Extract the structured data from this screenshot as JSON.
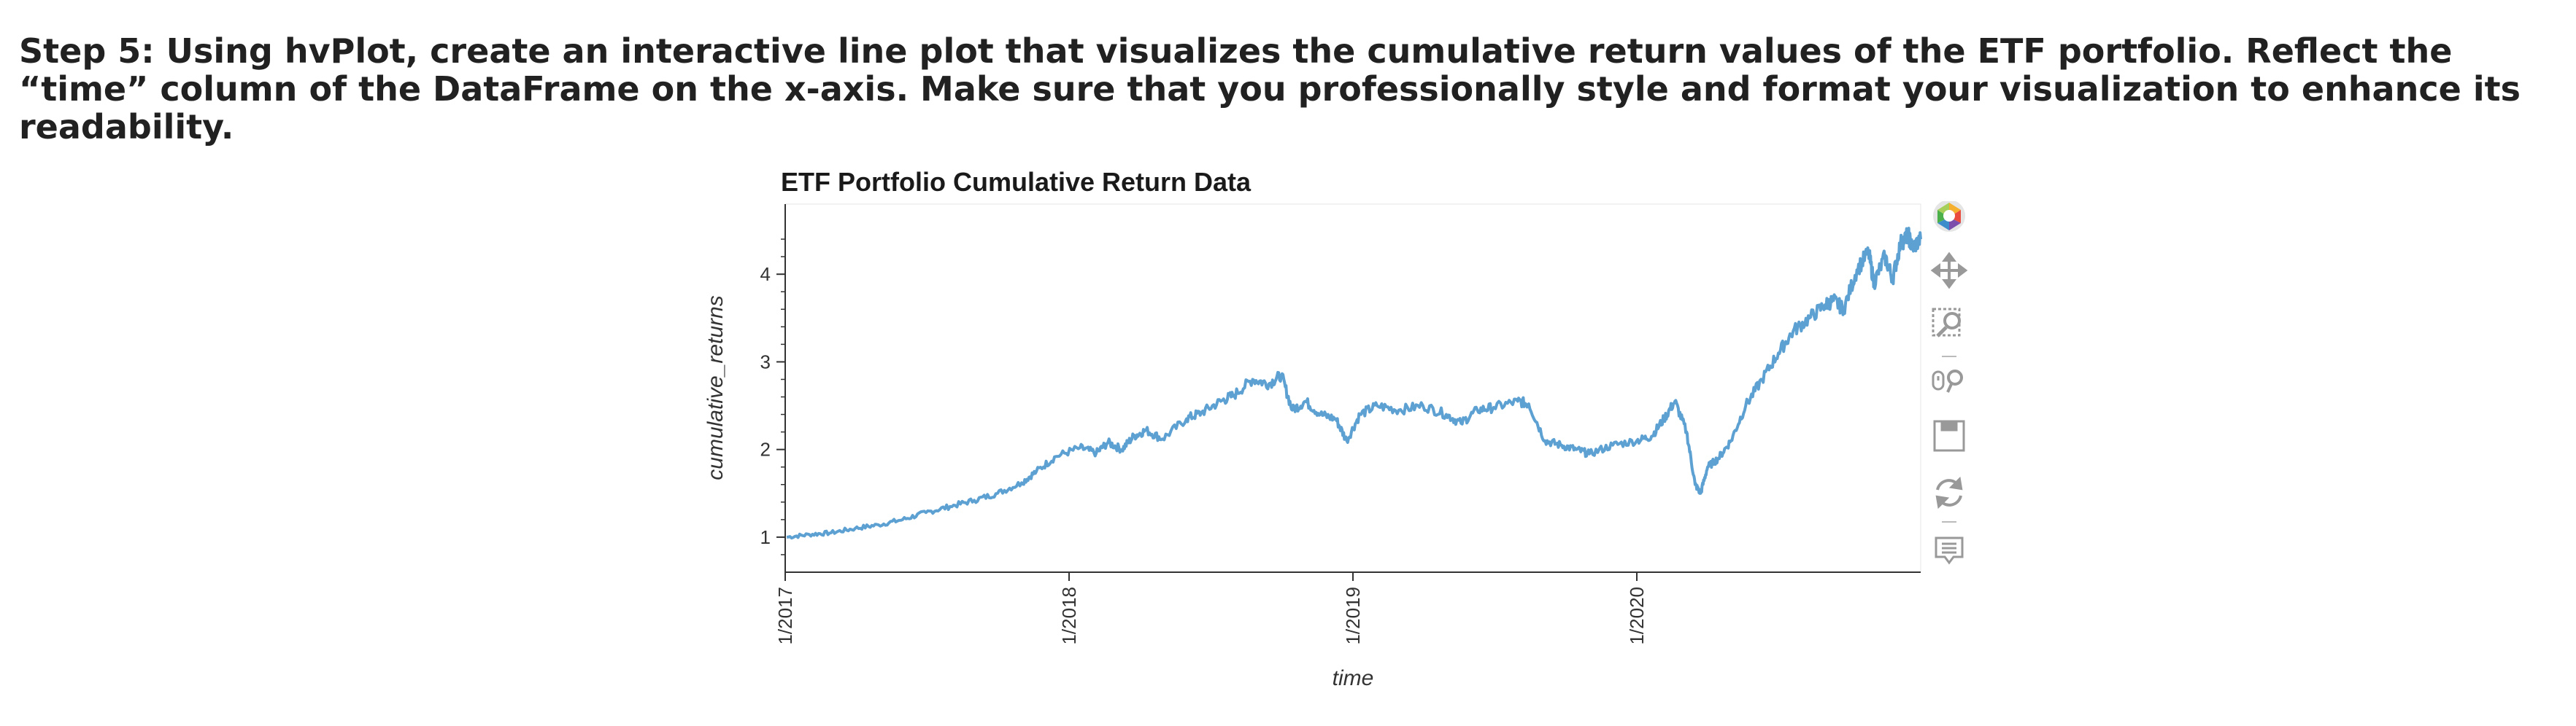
{
  "instruction": {
    "text": "Step 5: Using hvPlot, create an interactive line plot that visualizes the cumulative return values of the ETF portfolio. Reflect the “time” column of the DataFrame on the x-axis. Make sure that you professionally style and format your visualization to enhance its readability."
  },
  "toolbar": {
    "tools": [
      "bokeh-logo-icon",
      "pan-icon",
      "box-zoom-icon",
      "wheel-zoom-icon",
      "save-icon",
      "reset-icon",
      "hover-icon"
    ]
  },
  "colors": {
    "line": "#5da0d2",
    "axis": "#333333",
    "text": "#1a1a1a"
  },
  "chart_data": {
    "type": "line",
    "title": "ETF Portfolio Cumulative Return Data",
    "xlabel": "time",
    "ylabel": "cumulative_returns",
    "x_ticks": [
      "1/2017",
      "1/2018",
      "1/2019",
      "1/2020"
    ],
    "y_ticks": [
      1,
      2,
      3,
      4
    ],
    "xlim": [
      "2017-01-01",
      "2020-12-31"
    ],
    "ylim": [
      0.6,
      4.8
    ],
    "grid": false,
    "legend": "none",
    "series": [
      {
        "x": [
          "2017-01-03",
          "2017-02-01",
          "2017-03-01",
          "2017-04-01",
          "2017-05-01",
          "2017-06-01",
          "2017-07-01",
          "2017-08-01",
          "2017-09-01",
          "2017-10-01",
          "2017-11-01",
          "2017-11-20",
          "2017-12-15",
          "2018-01-15",
          "2018-02-05",
          "2018-02-20",
          "2018-03-10",
          "2018-03-25",
          "2018-04-10",
          "2018-05-01",
          "2018-06-01",
          "2018-06-20",
          "2018-07-15",
          "2018-08-01",
          "2018-08-25",
          "2018-09-15",
          "2018-10-01",
          "2018-10-15",
          "2018-11-01",
          "2018-11-20",
          "2018-12-10",
          "2018-12-24",
          "2019-01-10",
          "2019-02-01",
          "2019-03-01",
          "2019-04-01",
          "2019-05-01",
          "2019-05-20",
          "2019-06-10",
          "2019-07-01",
          "2019-08-01",
          "2019-08-15",
          "2019-09-05",
          "2019-09-25",
          "2019-10-15",
          "2019-11-01",
          "2019-12-01",
          "2020-01-01",
          "2020-01-20",
          "2020-02-05",
          "2020-02-19",
          "2020-03-05",
          "2020-03-16",
          "2020-03-23",
          "2020-04-01",
          "2020-04-15",
          "2020-05-01",
          "2020-05-20",
          "2020-06-10",
          "2020-07-01",
          "2020-07-20",
          "2020-08-10",
          "2020-08-30",
          "2020-09-10",
          "2020-09-23",
          "2020-10-10",
          "2020-10-25",
          "2020-11-01",
          "2020-11-15",
          "2020-11-25",
          "2020-12-05",
          "2020-12-15",
          "2020-12-20",
          "2020-12-31"
        ],
        "y": [
          1.0,
          1.03,
          1.05,
          1.1,
          1.14,
          1.2,
          1.28,
          1.35,
          1.42,
          1.5,
          1.62,
          1.75,
          1.92,
          2.02,
          1.96,
          2.08,
          2.0,
          2.15,
          2.22,
          2.12,
          2.35,
          2.42,
          2.55,
          2.62,
          2.8,
          2.75,
          2.85,
          2.45,
          2.55,
          2.4,
          2.35,
          2.1,
          2.4,
          2.5,
          2.45,
          2.5,
          2.4,
          2.3,
          2.45,
          2.48,
          2.55,
          2.52,
          2.1,
          2.05,
          2.0,
          1.95,
          2.05,
          2.1,
          2.15,
          2.35,
          2.55,
          2.2,
          1.6,
          1.5,
          1.8,
          1.9,
          2.1,
          2.5,
          2.8,
          3.1,
          3.35,
          3.5,
          3.65,
          3.7,
          3.6,
          4.05,
          4.25,
          3.9,
          4.2,
          3.95,
          4.35,
          4.45,
          4.3,
          4.4
        ]
      }
    ]
  }
}
